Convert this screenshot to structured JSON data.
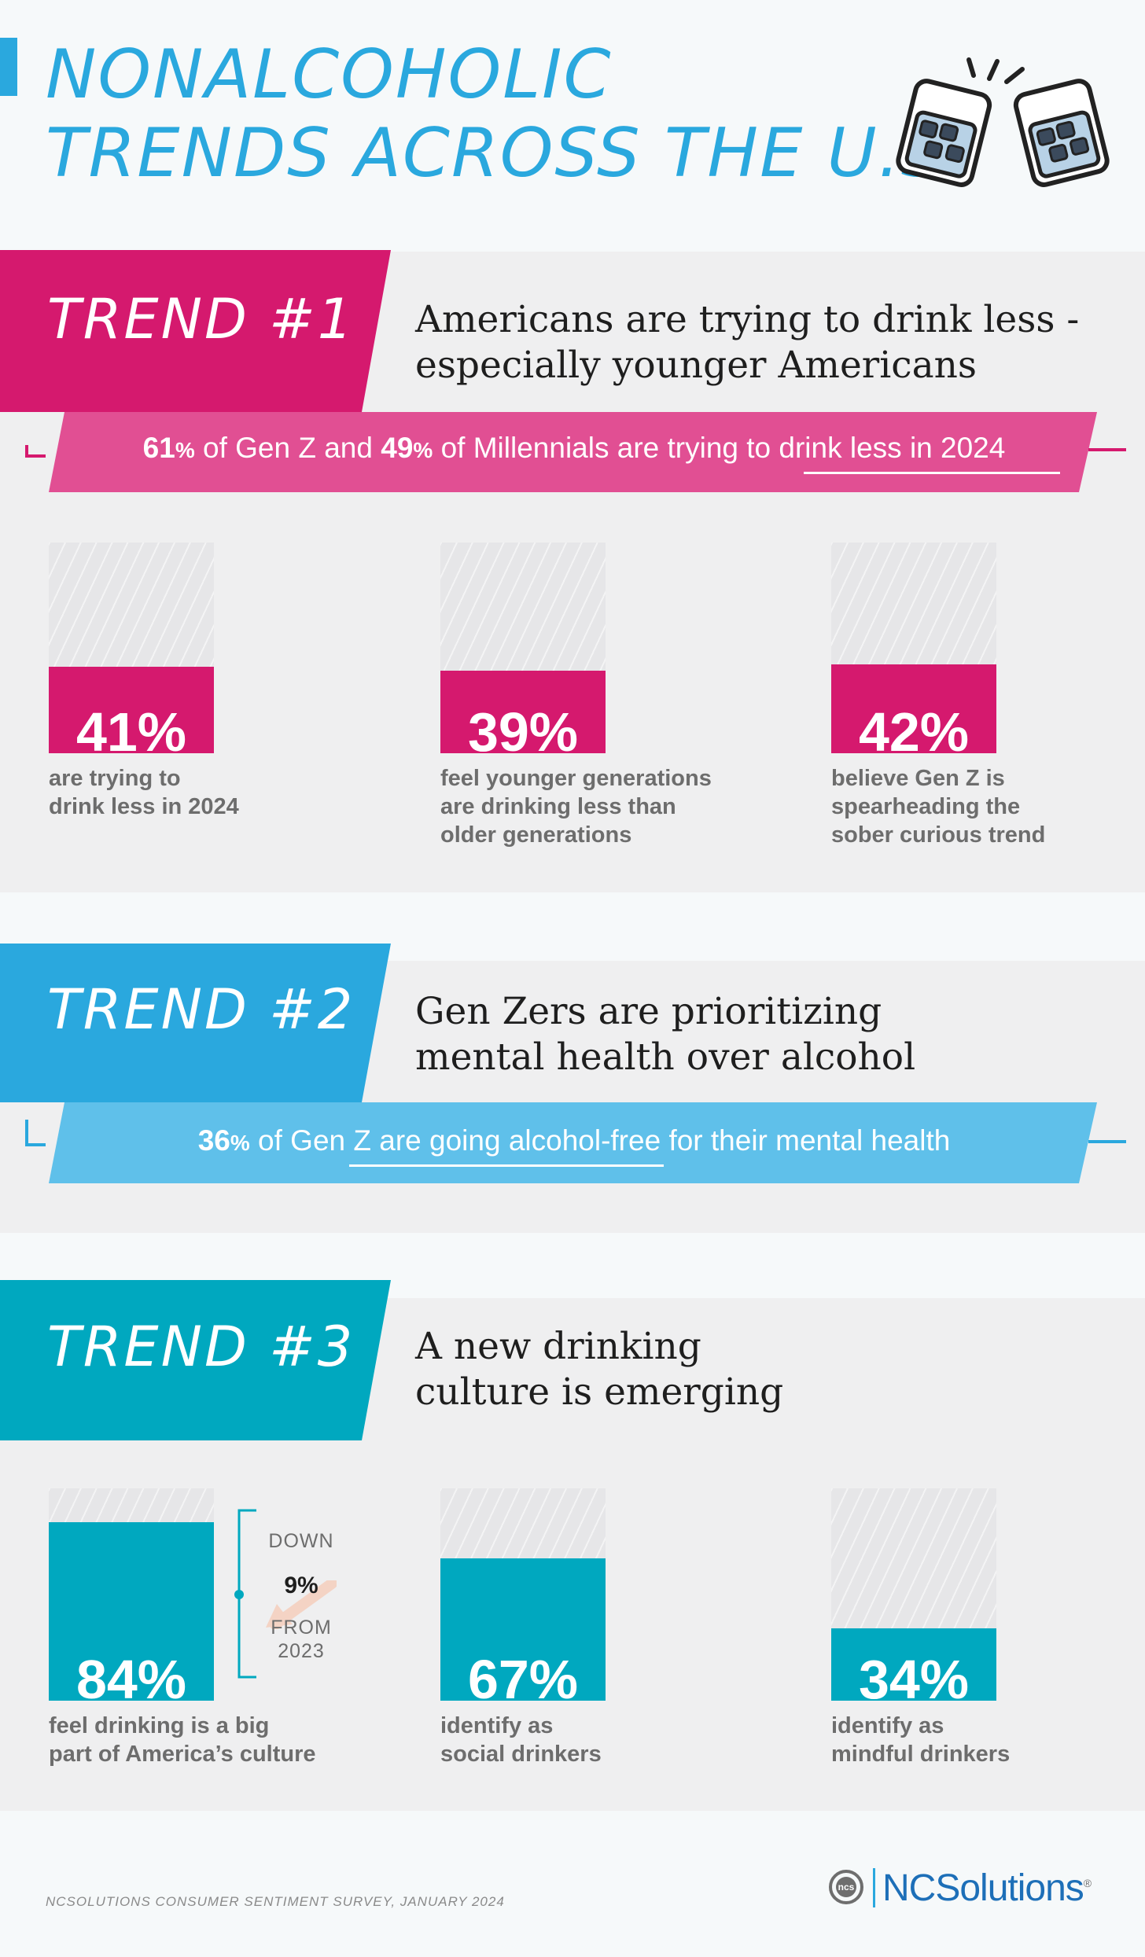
{
  "title": {
    "line1": "NONALCOHOLIC",
    "line2": "TRENDS ACROSS THE U.S."
  },
  "colors": {
    "pink": "#d5196e",
    "pink_light": "#e14f93",
    "blue": "#2aa8de",
    "blue_light": "#5fc0ea",
    "teal": "#00a8bf",
    "title_blue": "#2aa8de"
  },
  "icon": "clinking-glasses-icon",
  "trends": [
    {
      "label": "TREND #1",
      "heading": [
        "Americans are trying to drink less -",
        "especially younger Americans"
      ],
      "banner": {
        "p1_value": "61",
        "p1_unit": "%",
        "p1_text": " of Gen Z and ",
        "p2_value": "49",
        "p2_unit": "%",
        "p2_text": " of Millennials are trying to drink less in 2024"
      }
    },
    {
      "label": "TREND #2",
      "heading": [
        "Gen Zers are prioritizing",
        "mental health over alcohol"
      ],
      "banner": {
        "p1_value": "36",
        "p1_unit": "%",
        "p1_text": " of Gen Z are going alcohol-free for their mental health"
      }
    },
    {
      "label": "TREND #3",
      "heading": [
        "A new drinking",
        "culture is emerging"
      ]
    }
  ],
  "chart_data": [
    {
      "type": "bar",
      "categories": [
        "are trying to drink less in 2024",
        "feel younger generations are drinking less than older generations",
        "believe Gen Z is spearheading the sober curious trend"
      ],
      "values": [
        41,
        39,
        42
      ],
      "value_labels": [
        "41%",
        "39%",
        "42%"
      ],
      "captions": [
        [
          "are trying to",
          "drink less in 2024"
        ],
        [
          "feel younger generations",
          "are drinking less than",
          "older generations"
        ],
        [
          "believe Gen Z is",
          "spearheading the",
          "sober curious trend"
        ]
      ],
      "ylim": [
        0,
        100
      ],
      "color": "#d5196e"
    },
    {
      "type": "bar",
      "categories": [
        "feel drinking is a big part of America's culture",
        "identify as social drinkers",
        "identify as mindful drinkers"
      ],
      "values": [
        84,
        67,
        34
      ],
      "value_labels": [
        "84%",
        "67%",
        "34%"
      ],
      "captions": [
        [
          "feel drinking is a big",
          "part of America’s culture"
        ],
        [
          "identify as",
          "social drinkers"
        ],
        [
          "identify as",
          "mindful drinkers"
        ]
      ],
      "ylim": [
        0,
        100
      ],
      "color": "#00a8bf",
      "annotation": {
        "line1": "DOWN",
        "value": "9%",
        "line2": "FROM",
        "line3": "2023"
      }
    }
  ],
  "footer": {
    "source": "NCSOLUTIONS CONSUMER SENTIMENT SURVEY, JANUARY 2024",
    "logo_mark": "ncs",
    "logo_text": "NCSolutions",
    "logo_reg": "®"
  }
}
